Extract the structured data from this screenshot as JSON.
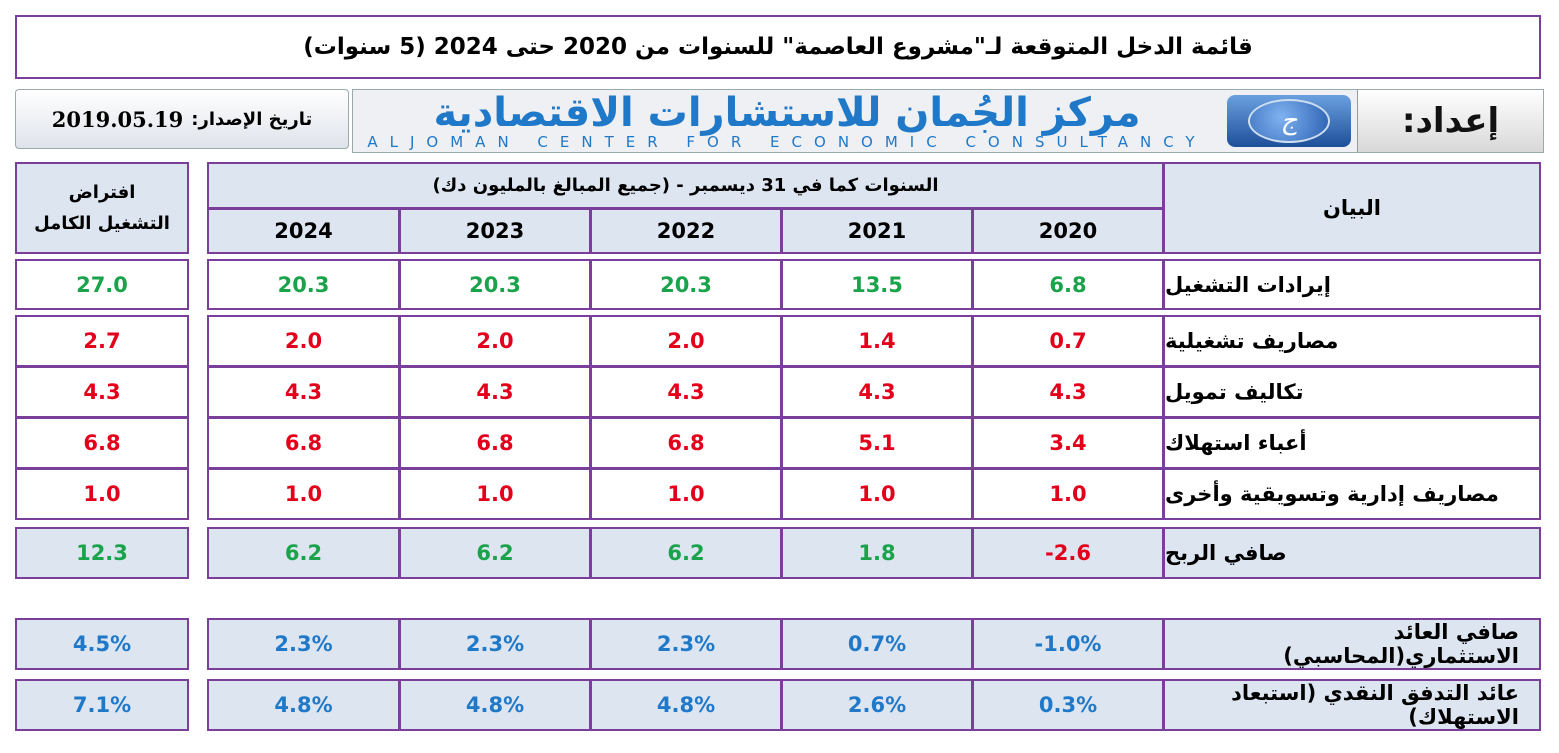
{
  "title": "قائمة الدخل المتوقعة لـ\"مشروع العاصمة\" للسنوات من 2020 حتى 2024 (5 سنوات)",
  "banner": {
    "prepared_by": "إعداد:",
    "org_ar": "مركز الجُمان للاستشارات الاقتصادية",
    "org_en": "ALJOMAN CENTER FOR ECONOMIC CONSULTANCY",
    "logo_icon": "aljoman-logo-icon"
  },
  "issue": {
    "label": "تاريخ الإصدار:",
    "date": "2019.05.19"
  },
  "header": {
    "item_label": "البيان",
    "years_caption": "السنوات كما في 31 ديسمبر  - (جميع المبالغ بالمليون دك)",
    "full_op_line1": "افتراض",
    "full_op_line2": "التشغيل الكامل",
    "years": [
      "2020",
      "2021",
      "2022",
      "2023",
      "2024"
    ]
  },
  "rows": [
    {
      "label": "إيرادات التشغيل",
      "values": [
        "6.8",
        "13.5",
        "20.3",
        "20.3",
        "20.3"
      ],
      "full": "27.0"
    },
    {
      "label": "مصاريف تشغيلية",
      "values": [
        "0.7",
        "1.4",
        "2.0",
        "2.0",
        "2.0"
      ],
      "full": "2.7"
    },
    {
      "label": "تكاليف تمويل",
      "values": [
        "4.3",
        "4.3",
        "4.3",
        "4.3",
        "4.3"
      ],
      "full": "4.3"
    },
    {
      "label": "أعباء استهلاك",
      "values": [
        "3.4",
        "5.1",
        "6.8",
        "6.8",
        "6.8"
      ],
      "full": "6.8"
    },
    {
      "label": "مصاريف إدارية وتسويقية وأخرى",
      "values": [
        "1.0",
        "1.0",
        "1.0",
        "1.0",
        "1.0"
      ],
      "full": "1.0"
    },
    {
      "label": "صافي الربح",
      "values": [
        "-2.6",
        "1.8",
        "6.2",
        "6.2",
        "6.2"
      ],
      "full": "12.3"
    },
    {
      "label": "صافي العائد الاستثماري(المحاسبي)",
      "values": [
        "-1.0%",
        "0.7%",
        "2.3%",
        "2.3%",
        "2.3%"
      ],
      "full": "4.5%"
    },
    {
      "label": "عائد التدفق النقدي (استبعاد الاستهلاك)",
      "values": [
        "0.3%",
        "2.6%",
        "4.8%",
        "4.8%",
        "4.8%"
      ],
      "full": "7.1%"
    }
  ],
  "colors": {
    "positive": "#1aa34a",
    "negative": "#e3001b",
    "ratio": "#1f78c8",
    "border": "#7a3f9a",
    "header_bg": "#dde5f0"
  }
}
